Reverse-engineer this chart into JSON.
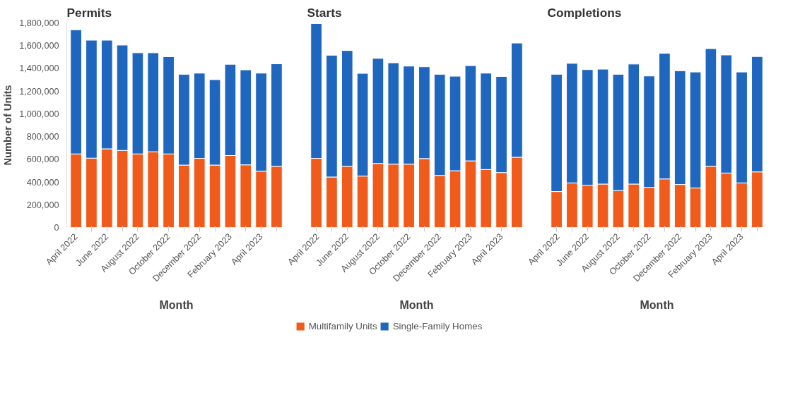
{
  "chart_data": [
    {
      "type": "bar",
      "title": "Permits",
      "xlabel": "Month",
      "ylabel": "Number of Units",
      "stacked": true,
      "categories": [
        "April 2022",
        null,
        "June 2022",
        null,
        "August 2022",
        null,
        "October 2022",
        null,
        "December 2022",
        null,
        "February 2023",
        null,
        "April 2023",
        null
      ],
      "ylim": [
        0,
        1800000
      ],
      "yticks": [
        {
          "value": 0,
          "label": "0"
        },
        {
          "value": 200000,
          "label": "200,000"
        },
        {
          "value": 400000,
          "label": "400,000"
        },
        {
          "value": 600000,
          "label": "600,000"
        },
        {
          "value": 800000,
          "label": "800,000"
        },
        {
          "value": 1000000,
          "label": "1,000,000"
        },
        {
          "value": 1200000,
          "label": "1,200,000"
        },
        {
          "value": 1400000,
          "label": "1,400,000"
        },
        {
          "value": 1600000,
          "label": "1,600,000"
        },
        {
          "value": 1800000,
          "label": "1,800,000"
        }
      ],
      "series": [
        {
          "color": "#f05a1a",
          "values": [
            647000,
            610000,
            692000,
            678000,
            647000,
            666000,
            647000,
            549000,
            608000,
            549000,
            633000,
            551000,
            495000,
            538000
          ]
        },
        {
          "color": "#1f66be",
          "values": [
            1093000,
            1038000,
            956000,
            927000,
            890000,
            871000,
            855000,
            799000,
            750000,
            752000,
            803000,
            836000,
            863000,
            902000
          ]
        }
      ]
    },
    {
      "type": "bar",
      "title": "Starts",
      "xlabel": "Month",
      "stacked": true,
      "legend": "bottom",
      "tick_labels": "x",
      "categories": [
        "April 2022",
        null,
        "June 2022",
        null,
        "August 2022",
        null,
        "October 2022",
        null,
        "December 2022",
        null,
        "February 2023",
        null,
        "April 2023",
        null
      ],
      "ylim": [
        0,
        1800000
      ],
      "series": [
        {
          "name": "Multifamily Units",
          "color": "#f05a1a",
          "values": [
            608000,
            444000,
            538000,
            452000,
            563000,
            557000,
            557000,
            606000,
            458000,
            499000,
            586000,
            510000,
            483000,
            618000
          ]
        },
        {
          "name": "Single-Family Homes",
          "color": "#1f66be",
          "values": [
            1186000,
            1072000,
            1019000,
            904000,
            925000,
            892000,
            863000,
            808000,
            890000,
            832000,
            838000,
            848000,
            846000,
            1005000
          ]
        }
      ]
    },
    {
      "type": "bar",
      "title": "Completions",
      "xlabel": "Month",
      "stacked": true,
      "tick_labels": "x",
      "categories": [
        "April 2022",
        null,
        "June 2022",
        null,
        "August 2022",
        null,
        "October 2022",
        null,
        "December 2022",
        null,
        "February 2023",
        null,
        "April 2023",
        null
      ],
      "ylim": [
        0,
        1800000
      ],
      "series": [
        {
          "color": "#f05a1a",
          "values": [
            316000,
            392000,
            372000,
            382000,
            325000,
            382000,
            353000,
            427000,
            378000,
            347000,
            538000,
            479000,
            392000,
            489000
          ]
        },
        {
          "color": "#1f66be",
          "values": [
            1032000,
            1052000,
            1017000,
            1011000,
            1023000,
            1056000,
            980000,
            1106000,
            1001000,
            1021000,
            1036000,
            1039000,
            976000,
            1015000
          ]
        }
      ]
    }
  ]
}
